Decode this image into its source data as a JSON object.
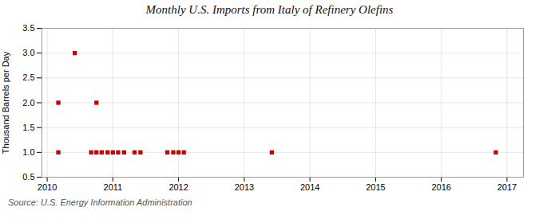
{
  "chart_data": {
    "type": "scatter",
    "title": "Monthly U.S. Imports from Italy of Refinery Olefins",
    "ylabel": "Thousand Barrels per Day",
    "annotation": "Source: U.S. Energy Information Administration",
    "color": "#cc0000",
    "marker": "square",
    "grid": true,
    "x": [
      2010.17,
      2010.17,
      2010.42,
      2010.67,
      2010.75,
      2010.75,
      2010.83,
      2010.92,
      2011.0,
      2011.08,
      2011.17,
      2011.33,
      2011.42,
      2011.83,
      2011.92,
      2012.0,
      2012.08,
      2013.42,
      2016.83
    ],
    "values": [
      1,
      2,
      3,
      1,
      1,
      2,
      1,
      1,
      1,
      1,
      1,
      1,
      1,
      1,
      1,
      1,
      1,
      1,
      1
    ],
    "xlim": [
      2009.92,
      2017.25
    ],
    "xticks": [
      2010,
      2011,
      2012,
      2013,
      2014,
      2015,
      2016,
      2017
    ],
    "ylim": [
      0.5,
      3.5
    ],
    "yticks": [
      0.5,
      {
        "value": 1,
        "label": "1.0"
      },
      1.5,
      {
        "value": 2,
        "label": "2.0"
      },
      2.5,
      {
        "value": 3,
        "label": "3.0"
      },
      3.5
    ]
  }
}
